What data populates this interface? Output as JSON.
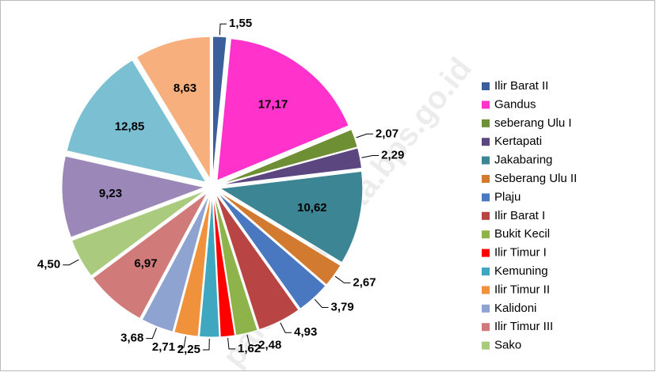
{
  "chart_data": {
    "type": "pie",
    "watermark": "palembangkota.bps.go.id",
    "categories": [
      "Ilir Barat II",
      "Gandus",
      "seberang Ulu I",
      "Kertapati",
      "Jakabaring",
      "Seberang Ulu II",
      "Plaju",
      "Ilir Barat I",
      "Bukit Kecil",
      "Ilir Timur I",
      "Kemuning",
      "Ilir Timur II",
      "Kalidoni",
      "Ilir Timur III",
      "Sako",
      null,
      null,
      null
    ],
    "values": [
      1.55,
      17.17,
      2.07,
      2.29,
      10.62,
      2.67,
      3.79,
      4.93,
      2.48,
      1.62,
      2.25,
      2.71,
      3.68,
      6.97,
      4.5,
      9.23,
      12.85,
      8.63
    ],
    "value_labels": [
      "1,55",
      "17,17",
      "2,07",
      "2,29",
      "10,62",
      "2,67",
      "3,79",
      "4,93",
      "2,48",
      "1,62",
      "2,25",
      "2,71",
      "3,68",
      "6,97",
      "4,50",
      "9,23",
      "12,85",
      "8,63"
    ],
    "colors": [
      "#3a5f9a",
      "#ff33cc",
      "#6f8f35",
      "#5c4680",
      "#3b8594",
      "#d27a30",
      "#4a78c0",
      "#b84444",
      "#8db34a",
      "#ff0000",
      "#3fa7c0",
      "#f0913b",
      "#8ea3d0",
      "#d17a7a",
      "#aacb7e",
      "#9b87b8",
      "#7bbfd3",
      "#f7b07d"
    ],
    "legend": "right"
  }
}
